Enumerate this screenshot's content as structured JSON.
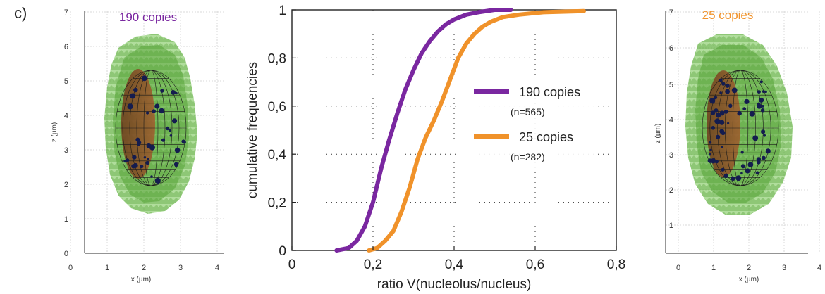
{
  "panel_label": "c)",
  "colors": {
    "series_190": "#7a27a0",
    "series_25": "#f0922a",
    "nucleus_green": "#5cb43a",
    "nucleolus_brown": "#8a4a22",
    "spot_navy": "#141c4f"
  },
  "left_plot": {
    "title": "190 copies",
    "xlabel": "x (µm)",
    "ylabel": "z (µm)",
    "xticks": [
      "0",
      "1",
      "2",
      "3",
      "4"
    ],
    "yticks": [
      "0",
      "1",
      "2",
      "3",
      "4",
      "5",
      "6",
      "7"
    ]
  },
  "right_plot": {
    "title": "25 copies",
    "xlabel": "x (µm)",
    "ylabel": "z (µm)",
    "xticks": [
      "0",
      "1",
      "2",
      "3",
      "4"
    ],
    "yticks": [
      "1",
      "2",
      "3",
      "4",
      "5",
      "6",
      "7"
    ]
  },
  "chart_data": {
    "type": "line",
    "title": "",
    "xlabel": "ratio V(nucleolus/nucleus)",
    "ylabel": "cumulative frequencies",
    "xlim": [
      0,
      0.8
    ],
    "ylim": [
      0,
      1
    ],
    "xticks": [
      "0",
      "0,2",
      "0,4",
      "0,6",
      "0,8"
    ],
    "yticks": [
      "0",
      "0,2",
      "0,4",
      "0,6",
      "0,8",
      "1"
    ],
    "grid": true,
    "legend_position": "center-right",
    "series": [
      {
        "name": "190 copies",
        "n_label": "(n=565)",
        "color": "#7a27a0",
        "x": [
          0.11,
          0.14,
          0.16,
          0.18,
          0.2,
          0.22,
          0.24,
          0.26,
          0.28,
          0.3,
          0.32,
          0.34,
          0.36,
          0.38,
          0.4,
          0.43,
          0.46,
          0.5,
          0.54
        ],
        "y": [
          0,
          0.01,
          0.04,
          0.1,
          0.2,
          0.34,
          0.46,
          0.57,
          0.67,
          0.75,
          0.82,
          0.87,
          0.91,
          0.94,
          0.96,
          0.98,
          0.99,
          1.0,
          1.0
        ]
      },
      {
        "name": "25 copies",
        "n_label": "(n=282)",
        "color": "#f0922a",
        "x": [
          0.19,
          0.21,
          0.23,
          0.25,
          0.27,
          0.29,
          0.31,
          0.33,
          0.35,
          0.37,
          0.39,
          0.41,
          0.43,
          0.45,
          0.47,
          0.49,
          0.52,
          0.56,
          0.62,
          0.72
        ],
        "y": [
          0,
          0.01,
          0.04,
          0.08,
          0.16,
          0.26,
          0.38,
          0.47,
          0.54,
          0.62,
          0.71,
          0.8,
          0.86,
          0.9,
          0.93,
          0.95,
          0.97,
          0.98,
          0.99,
          0.995
        ]
      }
    ]
  }
}
